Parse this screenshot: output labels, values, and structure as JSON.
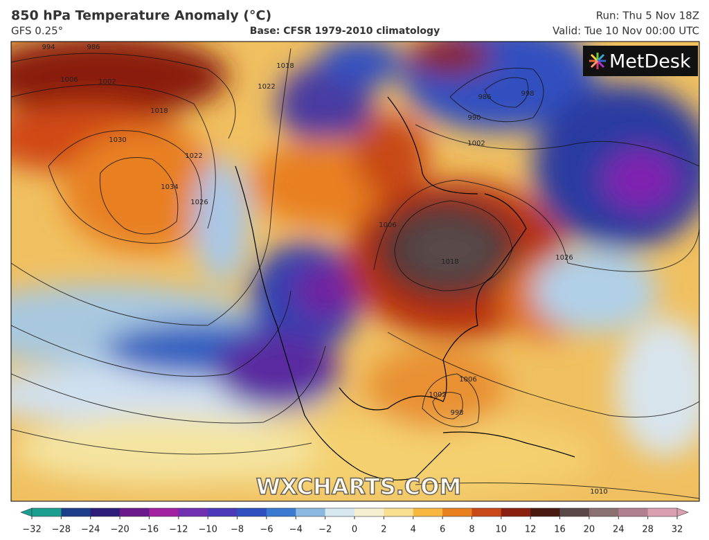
{
  "header": {
    "title": "850 hPa Temperature Anomaly (°C)",
    "model": "GFS 0.25°",
    "base": "Base: CFSR 1979-2010 climatology",
    "run": "Run: Thu 5 Nov 18Z",
    "valid": "Valid: Tue 10 Nov 00:00 UTC"
  },
  "logo": "MetDesk",
  "watermark": "WXCHARTS.COM",
  "isobar_labels": [
    "994",
    "986",
    "1006",
    "1002",
    "1018",
    "1022",
    "1018",
    "1030",
    "1034",
    "1022",
    "1026",
    "986",
    "990",
    "1002",
    "998",
    "1026",
    "1018",
    "1006",
    "1002",
    "998",
    "1006",
    "1010"
  ],
  "colorbar": {
    "ticks": [
      {
        "value": -32,
        "label": "−32"
      },
      {
        "value": -28,
        "label": "−28"
      },
      {
        "value": -24,
        "label": "−24"
      },
      {
        "value": -20,
        "label": "−20"
      },
      {
        "value": -16,
        "label": "−16"
      },
      {
        "value": -12,
        "label": "−12"
      },
      {
        "value": -10,
        "label": "−10"
      },
      {
        "value": -8,
        "label": "−8"
      },
      {
        "value": -6,
        "label": "−6"
      },
      {
        "value": -4,
        "label": "−4"
      },
      {
        "value": -2,
        "label": "−2"
      },
      0,
      2,
      4,
      6,
      8,
      10,
      12,
      16,
      20,
      24,
      28,
      32
    ],
    "colors": [
      "#1a9e8f",
      "#1c3e8a",
      "#2e1e78",
      "#6a1a8a",
      "#a020a0",
      "#7030b0",
      "#4a3ab8",
      "#3050c0",
      "#3a7ad0",
      "#8ab8e0",
      "#d8e8f0",
      "#f6f0d0",
      "#f8e090",
      "#f8b840",
      "#e88020",
      "#c84818",
      "#8a2010",
      "#4a1a10",
      "#5a4848",
      "#8a7070",
      "#b08090",
      "#d8a0b0"
    ]
  }
}
